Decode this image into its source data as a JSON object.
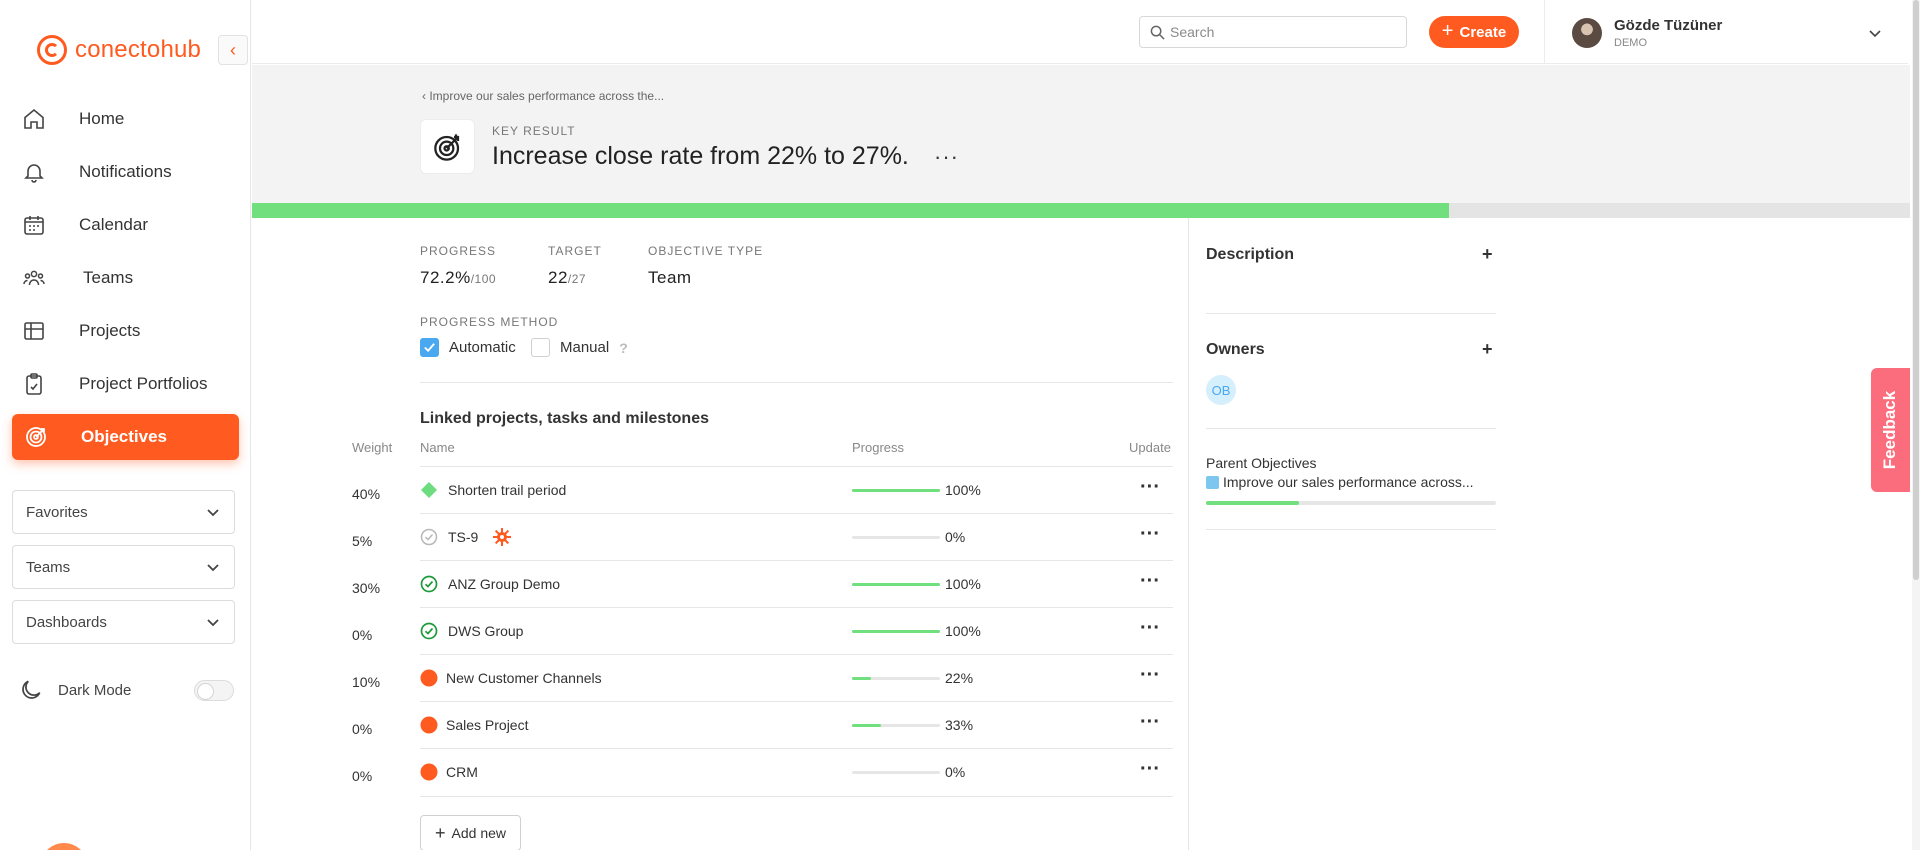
{
  "app": {
    "logo_text": "conectohub",
    "brand_color": "#ff5a1f"
  },
  "sidebar": {
    "nav": [
      {
        "label": "Home",
        "icon": "home-icon"
      },
      {
        "label": "Notifications",
        "icon": "bell-icon"
      },
      {
        "label": "Calendar",
        "icon": "calendar-icon"
      },
      {
        "label": "Teams",
        "icon": "teams-icon"
      },
      {
        "label": "Projects",
        "icon": "grid-icon"
      },
      {
        "label": "Project Portfolios",
        "icon": "clipboard-icon"
      },
      {
        "label": "Objectives",
        "icon": "target-icon",
        "active": true
      }
    ],
    "dropdowns": [
      "Favorites",
      "Teams",
      "Dashboards"
    ],
    "dark_mode_label": "Dark Mode",
    "dark_mode_on": false
  },
  "topbar": {
    "search_placeholder": "Search",
    "create_label": "Create",
    "user_name": "Gözde Tüzüner",
    "user_role": "DEMO"
  },
  "header": {
    "breadcrumb": "Improve our sales performance across the...",
    "type_label": "KEY RESULT",
    "title": "Increase close rate from 22% to 27%.",
    "more": "···",
    "progress": 0.722
  },
  "stats": {
    "progress_label": "PROGRESS",
    "progress_value": "72.2%",
    "progress_of": "/100",
    "target_label": "TARGET",
    "target_value": "22",
    "target_of": "/27",
    "type_label": "OBJECTIVE TYPE",
    "type_value": "Team",
    "method_label": "PROGRESS METHOD",
    "method_automatic": "Automatic",
    "method_manual": "Manual",
    "help": "?"
  },
  "linked": {
    "title": "Linked projects, tasks and milestones",
    "headers": {
      "weight": "Weight",
      "name": "Name",
      "progress": "Progress",
      "update": "Update"
    },
    "rows": [
      {
        "weight": "40%",
        "name": "Shorten trail period",
        "progress": 1.0,
        "pct": "100%",
        "icon": "milestone-diamond-icon"
      },
      {
        "weight": "5%",
        "name": "TS-9",
        "progress": 0.0,
        "pct": "0%",
        "icon": "task-check-icon"
      },
      {
        "weight": "30%",
        "name": "ANZ Group Demo",
        "progress": 1.0,
        "pct": "100%",
        "icon": "task-done-icon"
      },
      {
        "weight": "0%",
        "name": "DWS Group",
        "progress": 1.0,
        "pct": "100%",
        "icon": "task-done-icon"
      },
      {
        "weight": "10%",
        "name": "New Customer Channels",
        "progress": 0.22,
        "pct": "22%",
        "icon": "project-dot-icon"
      },
      {
        "weight": "0%",
        "name": "Sales Project",
        "progress": 0.33,
        "pct": "33%",
        "icon": "project-dot-icon"
      },
      {
        "weight": "0%",
        "name": "CRM",
        "progress": 0.0,
        "pct": "0%",
        "icon": "project-dot-icon"
      }
    ],
    "row_more": "···",
    "add_new": "Add new"
  },
  "right": {
    "description_title": "Description",
    "owners_title": "Owners",
    "owner_initials": "OB",
    "parent_label": "Parent Objectives",
    "parent_link": "Improve our sales performance across...",
    "parent_progress": 0.32,
    "plus": "+"
  },
  "feedback_label": "Feedback"
}
